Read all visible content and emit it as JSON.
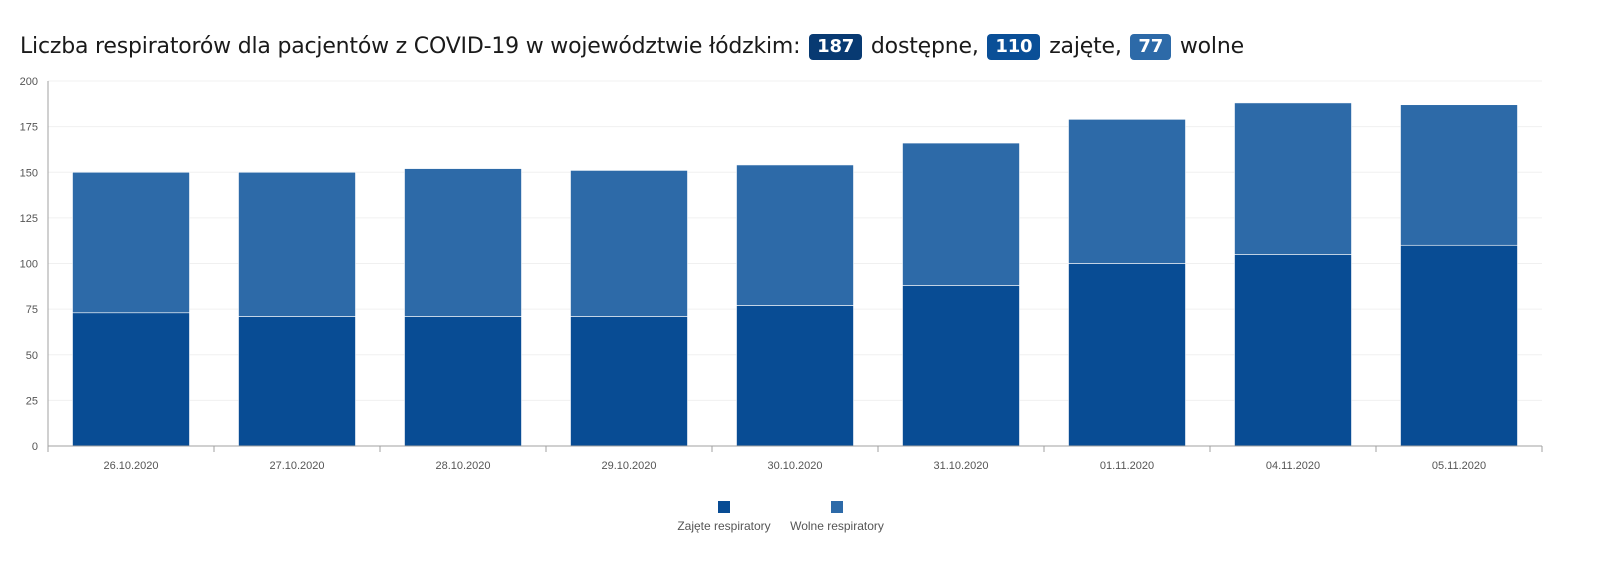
{
  "header": {
    "text_before": "Liczba respiratorów dla pacjentów z COVID-19 w województwie łódzkim:",
    "available_value": "187",
    "available_label": "dostępne,",
    "occupied_value": "110",
    "occupied_label": "zajęte,",
    "free_value": "77",
    "free_label": "wolne"
  },
  "colors": {
    "occupied": "#084c94",
    "free": "#2d6aa8",
    "badge_available": "#083a72",
    "badge_occupied": "#0a4f97",
    "badge_free": "#2d6aa8",
    "axis": "#a0a0a0",
    "grid": "#f0f0f0"
  },
  "chart_data": {
    "type": "bar",
    "stacked": true,
    "categories": [
      "26.10.2020",
      "27.10.2020",
      "28.10.2020",
      "29.10.2020",
      "30.10.2020",
      "31.10.2020",
      "01.11.2020",
      "04.11.2020",
      "05.11.2020"
    ],
    "series": [
      {
        "name": "Zajęte respiratory",
        "values": [
          73,
          71,
          71,
          71,
          77,
          88,
          100,
          105,
          110
        ]
      },
      {
        "name": "Wolne respiratory",
        "values": [
          77,
          79,
          81,
          80,
          77,
          78,
          79,
          83,
          77
        ]
      }
    ],
    "ylim": [
      0,
      200
    ],
    "yticks": [
      0,
      25,
      50,
      75,
      100,
      125,
      150,
      175,
      200
    ],
    "grid": true,
    "legend_position": "bottom-center"
  }
}
